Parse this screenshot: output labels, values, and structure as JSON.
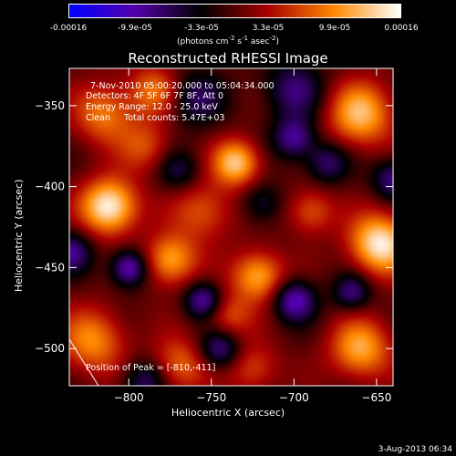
{
  "colorbar": {
    "tick_labels": [
      "-0.00016",
      "-9.9e-05",
      "-3.3e-05",
      "3.3e-05",
      "9.9e-05",
      "0.00016"
    ],
    "units": "(photons cm-2 s-1 asec-2)",
    "units_parts": {
      "base1": "(photons cm",
      "exp1": "-2",
      "base2": " s",
      "exp2": "-1",
      "base3": " asec",
      "exp3": "-2",
      "end": ")"
    },
    "colormap": [
      "#0000ff",
      "#5500aa",
      "#000000",
      "#aa0000",
      "#ff8800",
      "#ffffff"
    ]
  },
  "chart_data": {
    "type": "heatmap",
    "title": "Reconstructed RHESSI Image",
    "xlabel": "Heliocentric X (arcsec)",
    "ylabel": "Heliocentric Y (arcsec)",
    "xlim": [
      -836,
      -640
    ],
    "ylim": [
      -523,
      -327
    ],
    "xticks": [
      -800,
      -750,
      -700,
      -650
    ],
    "yticks": [
      -350,
      -400,
      -450,
      -500
    ],
    "value_range": [
      -0.00016,
      0.00016
    ],
    "peak": [
      -810,
      -411
    ],
    "sources": [
      {
        "x": -812,
        "y": -412,
        "amp": 1.0,
        "s": 12
      },
      {
        "x": -648,
        "y": -435,
        "amp": 0.95,
        "s": 13
      },
      {
        "x": -660,
        "y": -355,
        "amp": 0.75,
        "s": 14
      },
      {
        "x": -735,
        "y": -385,
        "amp": 0.8,
        "s": 10
      },
      {
        "x": -775,
        "y": -445,
        "amp": 0.7,
        "s": 11
      },
      {
        "x": -722,
        "y": -455,
        "amp": 0.72,
        "s": 11
      },
      {
        "x": -755,
        "y": -415,
        "amp": 0.45,
        "s": 13
      },
      {
        "x": -822,
        "y": -495,
        "amp": 0.6,
        "s": 14
      },
      {
        "x": -660,
        "y": -500,
        "amp": 0.7,
        "s": 13
      },
      {
        "x": -770,
        "y": -510,
        "amp": 0.5,
        "s": 12
      },
      {
        "x": -725,
        "y": -512,
        "amp": 0.4,
        "s": 11
      },
      {
        "x": -815,
        "y": -355,
        "amp": 0.55,
        "s": 13
      },
      {
        "x": -785,
        "y": -340,
        "amp": 0.5,
        "s": 11
      },
      {
        "x": -690,
        "y": -415,
        "amp": 0.45,
        "s": 10
      },
      {
        "x": -740,
        "y": -480,
        "amp": 0.42,
        "s": 10
      },
      {
        "x": -790,
        "y": -375,
        "amp": 0.4,
        "s": 11
      },
      {
        "x": -700,
        "y": -340,
        "amp": -0.45,
        "s": 13
      },
      {
        "x": -760,
        "y": -345,
        "amp": -0.4,
        "s": 12
      },
      {
        "x": -700,
        "y": -370,
        "amp": -0.55,
        "s": 9
      },
      {
        "x": -800,
        "y": -450,
        "amp": -0.7,
        "s": 8
      },
      {
        "x": -755,
        "y": -470,
        "amp": -0.6,
        "s": 8
      },
      {
        "x": -700,
        "y": -470,
        "amp": -0.65,
        "s": 9
      },
      {
        "x": -665,
        "y": -465,
        "amp": -0.5,
        "s": 8
      },
      {
        "x": -745,
        "y": -500,
        "amp": -0.55,
        "s": 9
      },
      {
        "x": -790,
        "y": -520,
        "amp": -0.45,
        "s": 10
      },
      {
        "x": -835,
        "y": -440,
        "amp": -0.5,
        "s": 9
      },
      {
        "x": -720,
        "y": -410,
        "amp": -0.35,
        "s": 9
      },
      {
        "x": -770,
        "y": -390,
        "amp": -0.35,
        "s": 9
      },
      {
        "x": -680,
        "y": -385,
        "amp": -0.45,
        "s": 9
      },
      {
        "x": -640,
        "y": -395,
        "amp": -0.5,
        "s": 9
      }
    ]
  },
  "annotations": {
    "time_range": "7-Nov-2010 05:00:20.000 to 05:04:34.000",
    "detectors": "Detectors: 4F 5F 6F 7F 8F, Att 0",
    "energy_range": "Energy Range: 12.0 - 25.0 keV",
    "method": "Clean     Total counts: 5.47E+03",
    "peak_position": "Position of Peak = [-810,-411]"
  },
  "timestamp": "3-Aug-2013 06:34"
}
